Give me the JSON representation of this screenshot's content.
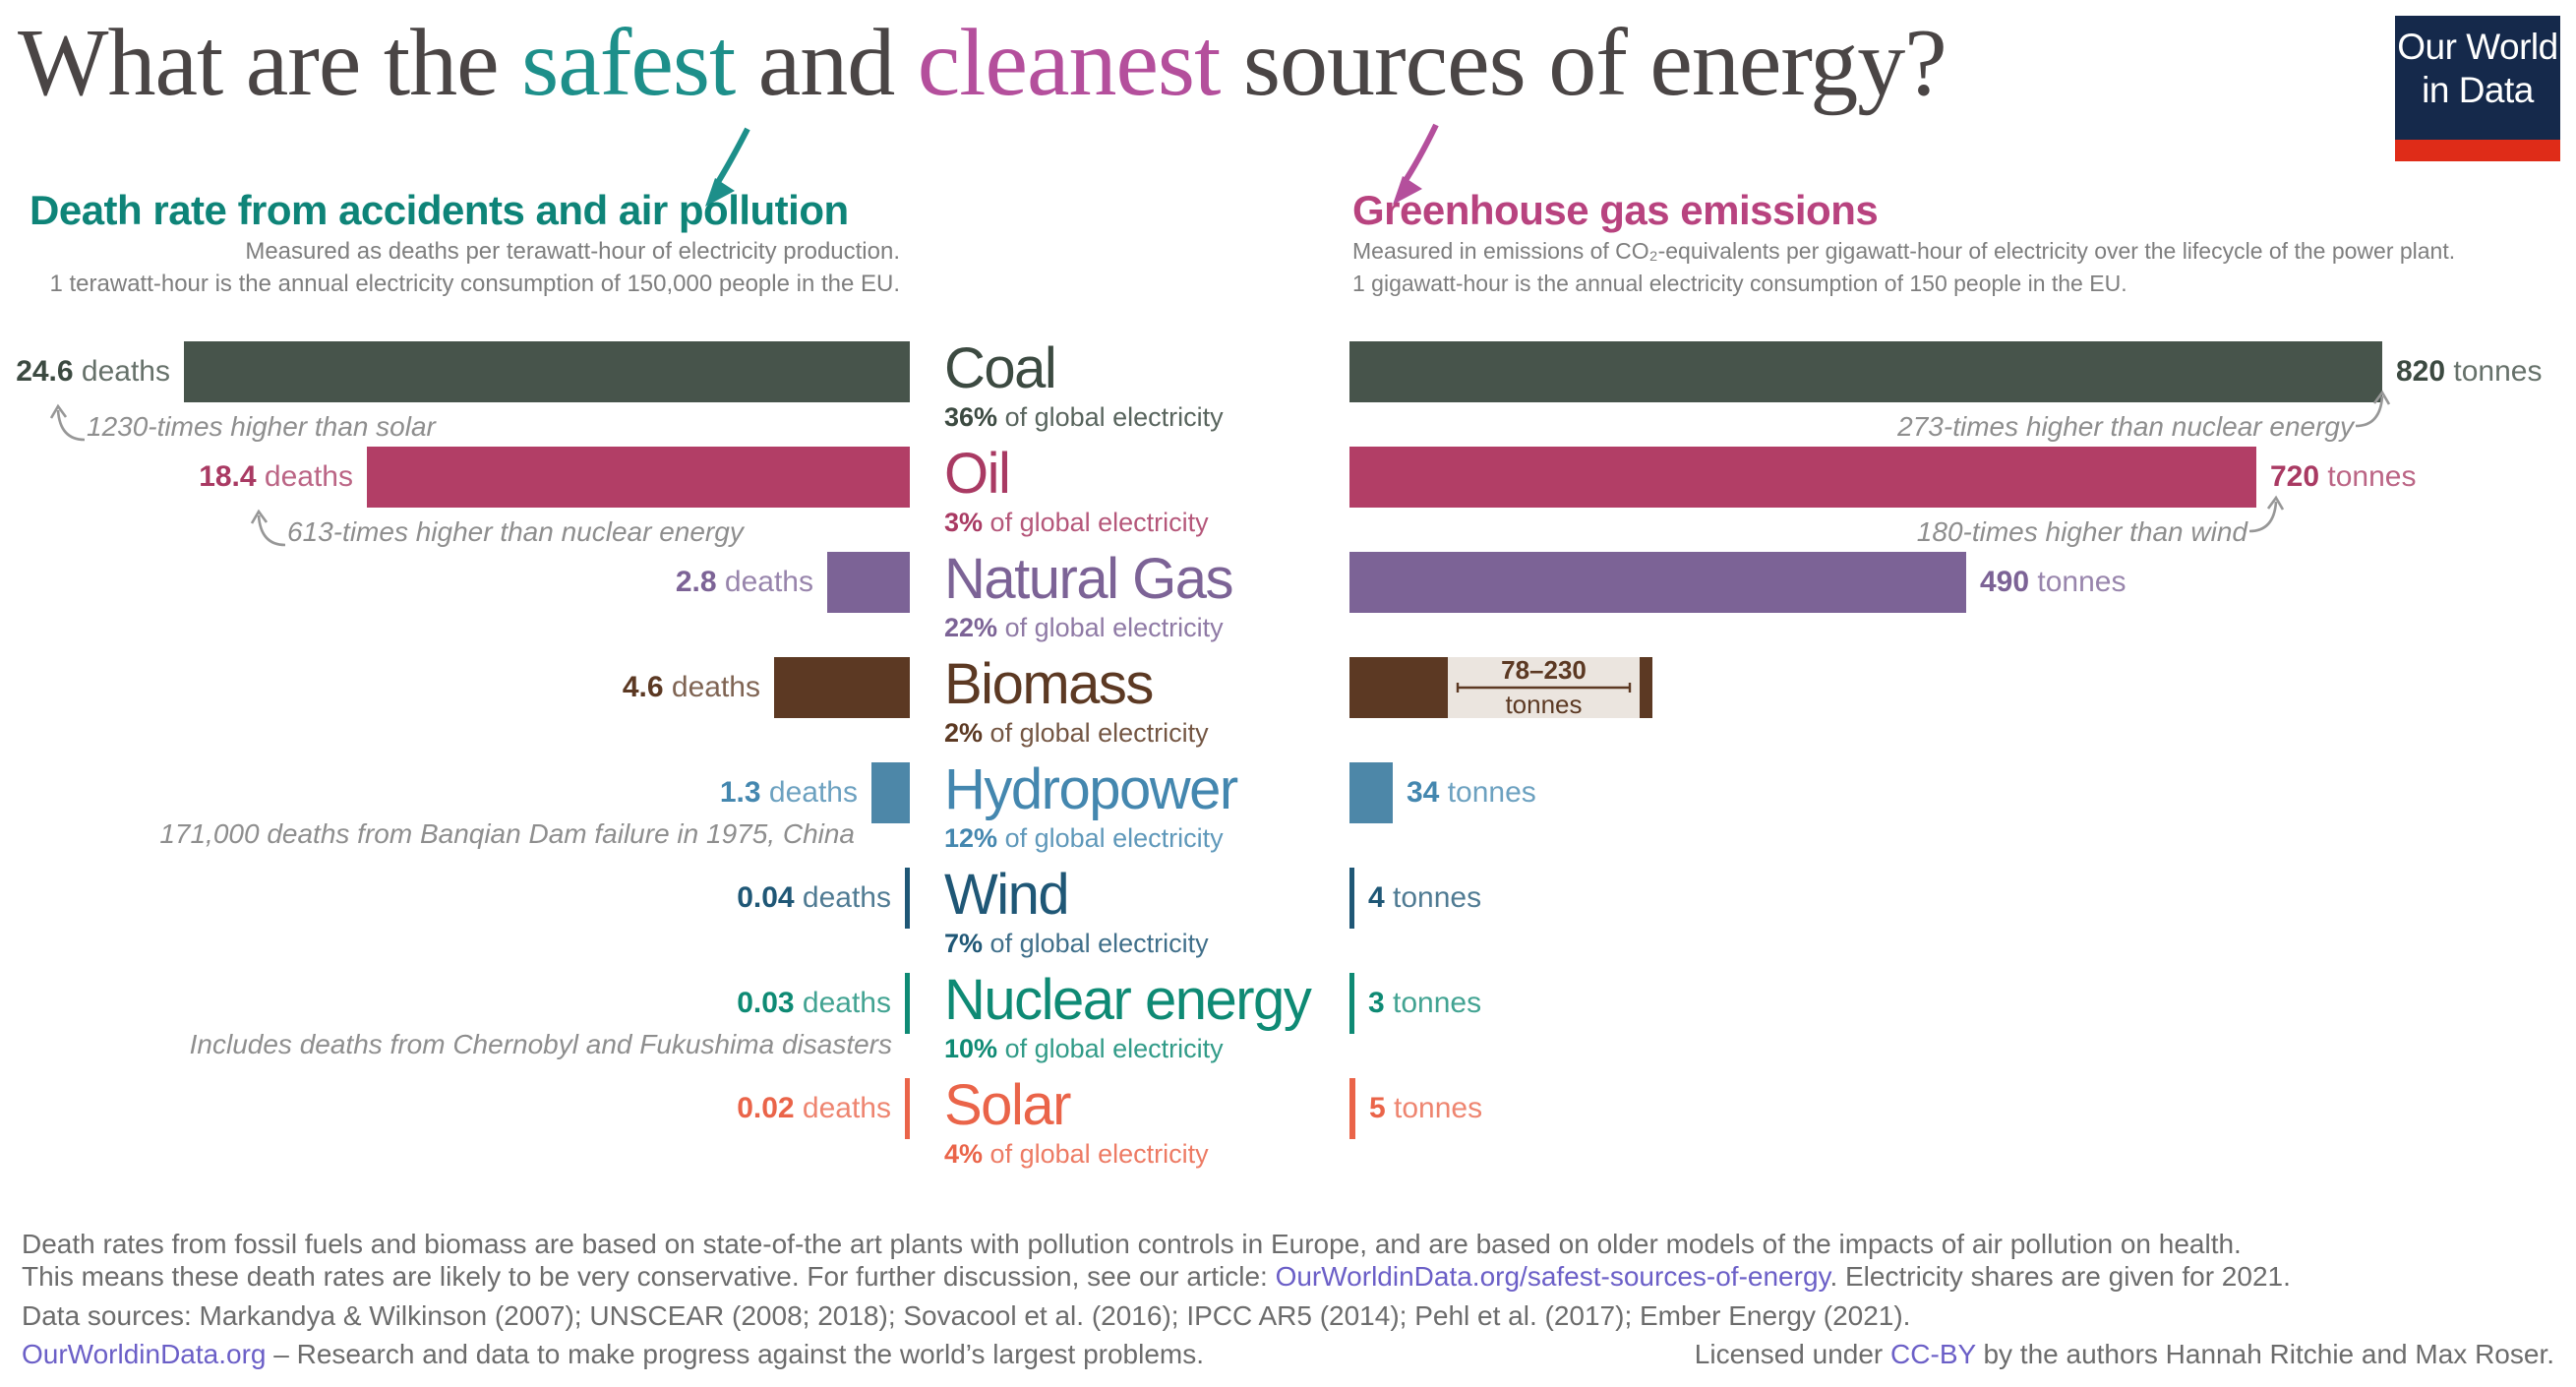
{
  "title": {
    "part1": "What are the ",
    "safest": "safest",
    "and": " and ",
    "cleanest": "cleanest",
    "part2": " sources of energy?"
  },
  "logo": {
    "line1": "Our World",
    "line2": "in Data"
  },
  "left_panel": {
    "heading": "Death rate from accidents and air pollution",
    "sub1": "Measured as deaths per terawatt-hour of electricity production.",
    "sub2": "1 terawatt-hour is the annual electricity consumption of 150,000 people in the EU."
  },
  "right_panel": {
    "heading": "Greenhouse gas emissions",
    "sub1": "Measured in emissions of CO₂-equivalents per gigawatt-hour of electricity over the lifecycle of the power plant.",
    "sub2": "1 gigawatt-hour is the annual electricity consumption of 150 people in the EU."
  },
  "units": {
    "deaths": "deaths",
    "tonnes": "tonnes",
    "share_suffix": "of global electricity"
  },
  "rows": [
    {
      "id": "coal",
      "name": "Coal",
      "share": "36%",
      "deaths": "24.6",
      "tonnes": "820",
      "color": "#47544B",
      "text_color": "#3C4A41",
      "note_left": "1230-times higher than solar",
      "note_right": "273-times higher than nuclear energy"
    },
    {
      "id": "oil",
      "name": "Oil",
      "share": "3%",
      "deaths": "18.4",
      "tonnes": "720",
      "color": "#B23E66",
      "text_color": "#A93A63",
      "note_left": "613-times higher than nuclear energy",
      "note_right": "180-times higher than wind"
    },
    {
      "id": "gas",
      "name": "Natural Gas",
      "share": "22%",
      "deaths": "2.8",
      "tonnes": "490",
      "color": "#7C6396",
      "text_color": "#7C6396"
    },
    {
      "id": "biomass",
      "name": "Biomass",
      "share": "2%",
      "deaths": "4.6",
      "tonnes": "78–230",
      "color": "#5C3923",
      "text_color": "#5C3923",
      "range_bg": "#EBE5DF",
      "range": {
        "label": "78–230",
        "unit": "tonnes"
      }
    },
    {
      "id": "hydropower",
      "name": "Hydropower",
      "share": "12%",
      "deaths": "1.3",
      "tonnes": "34",
      "color": "#4D87A8",
      "text_color": "#4487AF",
      "note_left": "171,000 deaths from Banqian Dam failure in 1975, China"
    },
    {
      "id": "wind",
      "name": "Wind",
      "share": "7%",
      "deaths": "0.04",
      "tonnes": "4",
      "color": "#1F5776",
      "text_color": "#1F5776"
    },
    {
      "id": "nuclear",
      "name": "Nuclear energy",
      "share": "10%",
      "deaths": "0.03",
      "tonnes": "3",
      "color": "#0E8A74",
      "text_color": "#0E8A74",
      "note_left": "Includes deaths from Chernobyl and Fukushima disasters"
    },
    {
      "id": "solar",
      "name": "Solar",
      "share": "4%",
      "deaths": "0.02",
      "tonnes": "5",
      "color": "#EA6449",
      "text_color": "#EA6449"
    }
  ],
  "chart_data": {
    "type": "bar",
    "orientation": "horizontal",
    "categories": [
      "Coal",
      "Oil",
      "Natural Gas",
      "Biomass",
      "Hydropower",
      "Wind",
      "Nuclear energy",
      "Solar"
    ],
    "series": [
      {
        "name": "Death rate from accidents and air pollution",
        "unit": "deaths per terawatt-hour of electricity production",
        "values": [
          24.6,
          18.4,
          2.8,
          4.6,
          1.3,
          0.04,
          0.03,
          0.02
        ]
      },
      {
        "name": "Greenhouse gas emissions",
        "unit": "tonnes of CO₂-equivalents per gigawatt-hour of electricity",
        "values": [
          820,
          720,
          490,
          [
            78,
            230
          ],
          34,
          4,
          3,
          5
        ]
      }
    ],
    "share_of_global_electricity_2021": [
      "36%",
      "3%",
      "22%",
      "2%",
      "12%",
      "7%",
      "10%",
      "4%"
    ],
    "annotations": [
      "1230-times higher than solar",
      "613-times higher than nuclear energy",
      "273-times higher than nuclear energy",
      "180-times higher than wind",
      "171,000 deaths from Banqian Dam failure in 1975, China",
      "Includes deaths from Chernobyl and Fukushima disasters"
    ],
    "legend_position": "none",
    "grid": false
  },
  "colors": {
    "title_safest": "#1D8F8A",
    "title_cleanest": "#B44F9C",
    "left_heading": "#0E8478",
    "right_heading": "#B8437F",
    "annotation_gray": "#8E8E8E",
    "logo_navy": "#15294B",
    "logo_red": "#DF2C18",
    "link": "#6B5FC7"
  },
  "footer": {
    "line1": "Death rates from fossil fuels and biomass are based on state-of-the art plants with pollution controls in Europe, and are based on older models of the impacts of air pollution on health.",
    "line2_pre": "This means these death rates are likely to be very conservative. For further discussion, see our article: ",
    "line2_link": "OurWorldinData.org/safest-sources-of-energy",
    "line2_post": ". Electricity shares are given for 2021.",
    "line3": "Data sources: Markandya & Wilkinson (2007); UNSCEAR (2008; 2018); Sovacool et al. (2016); IPCC AR5 (2014); Pehl et al. (2017); Ember Energy (2021).",
    "line4_link": "OurWorldinData.org",
    "line4_text": " – Research and data to make progress against the world’s largest problems.",
    "license_pre": "Licensed under ",
    "license_link": "CC-BY",
    "license_post": " by the authors Hannah Ritchie and Max Roser."
  }
}
